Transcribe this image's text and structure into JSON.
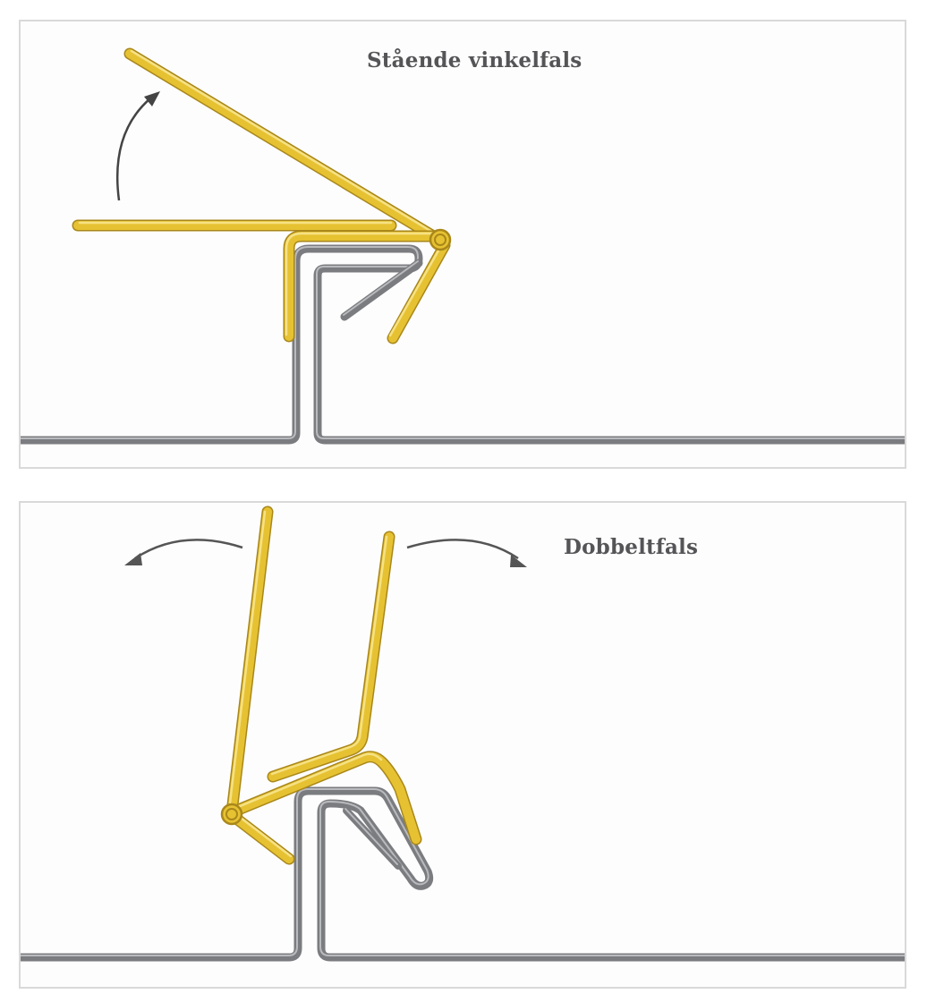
{
  "panels": [
    {
      "title": "Stående vinkelfals"
    },
    {
      "title": "Dobbeltfals"
    }
  ],
  "colors": {
    "seam_metal": "#7b7c80",
    "seam_highlight": "#b9babd",
    "tool_yellow": "#e6c232",
    "tool_outline": "#a9871a",
    "tool_highlight": "#f6e184",
    "arrow": "#444444",
    "panel_border": "#d9d9d9",
    "text": "#555558"
  },
  "icons": [
    "seaming-tool-jaws",
    "metal-roof-seam",
    "curved-arrow"
  ]
}
